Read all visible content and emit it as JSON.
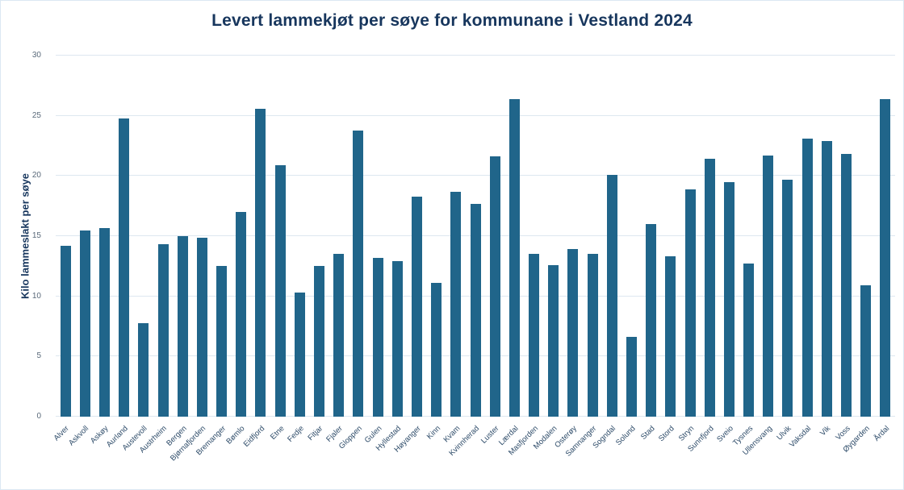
{
  "chart_data": {
    "type": "bar",
    "title": "Levert lammekjøt per søye for kommunane i Vestland 2024",
    "xlabel": "",
    "ylabel": "Kilo lammeslakt per søye",
    "ylim": [
      0,
      30
    ],
    "yticks": [
      0,
      5,
      10,
      15,
      20,
      25,
      30
    ],
    "grid": true,
    "legend": "none",
    "bar_color": "#20658a",
    "title_color": "#17365d",
    "categories": [
      "Alver",
      "Askvoll",
      "Askøy",
      "Aurland",
      "Austevoll",
      "Austrheim",
      "Bergen",
      "Bjørnafjorden",
      "Bremanger",
      "Bømlo",
      "Eidfjord",
      "Etne",
      "Fedje",
      "Fitjar",
      "Fjaler",
      "Gloppen",
      "Gulen",
      "Hyllestad",
      "Høyanger",
      "Kinn",
      "Kvam",
      "Kvinnherad",
      "Luster",
      "Lærdal",
      "Masfjorden",
      "Modalen",
      "Osterøy",
      "Samnanger",
      "Sogndal",
      "Solund",
      "Stad",
      "Stord",
      "Stryn",
      "Sunnfjord",
      "Sveio",
      "Tysnes",
      "Ullensvang",
      "Ulvik",
      "Vaksdal",
      "Vik",
      "Voss",
      "Øygarden",
      "Årdal"
    ],
    "values": [
      14.2,
      15.5,
      15.7,
      24.8,
      7.8,
      14.3,
      15.0,
      14.9,
      12.5,
      17.0,
      25.6,
      20.9,
      10.3,
      12.5,
      13.5,
      23.8,
      13.2,
      12.9,
      18.3,
      11.1,
      18.7,
      17.7,
      21.6,
      26.4,
      13.5,
      12.6,
      13.9,
      13.5,
      20.1,
      6.6,
      16.0,
      13.3,
      18.9,
      21.4,
      19.5,
      12.7,
      21.7,
      19.7,
      23.1,
      22.9,
      21.8,
      10.9,
      26.4
    ]
  }
}
